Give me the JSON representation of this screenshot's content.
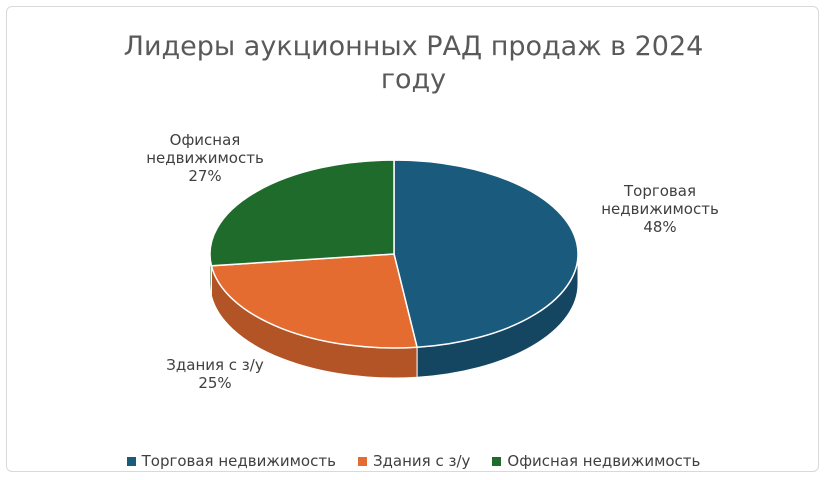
{
  "chart_data": {
    "type": "pie",
    "title": "Лидеры аукционных РАД продаж в 2024 году",
    "categories": [
      "Торговая недвижимость",
      "Здания с з/у",
      "Офисная недвижимость"
    ],
    "values": [
      48,
      25,
      27
    ],
    "labels": [
      {
        "name_lines": [
          "Торговая",
          "недвижимость"
        ],
        "pct": "48%"
      },
      {
        "name_lines": [
          "Здания с з/у"
        ],
        "pct": "25%"
      },
      {
        "name_lines": [
          "Офисная",
          "недвижимость"
        ],
        "pct": "27%"
      }
    ],
    "colors": [
      "#1a5a7d",
      "#e46c30",
      "#1f6b2c"
    ],
    "legend_position": "bottom"
  }
}
